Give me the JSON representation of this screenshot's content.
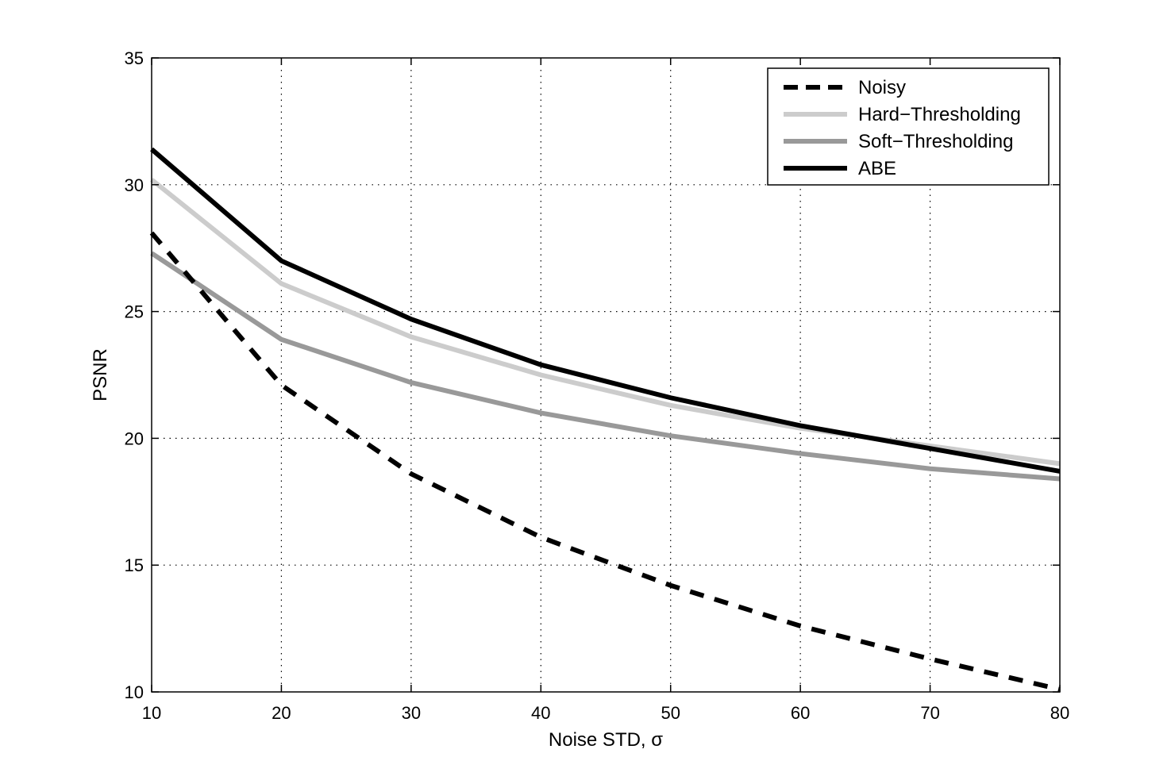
{
  "chart_data": {
    "type": "line",
    "title": "",
    "xlabel": "Noise STD, σ",
    "ylabel": "PSNR",
    "xlim": [
      10,
      80
    ],
    "ylim": [
      10,
      35
    ],
    "xticks": [
      10,
      20,
      30,
      40,
      50,
      60,
      70,
      80
    ],
    "yticks": [
      10,
      15,
      20,
      25,
      30,
      35
    ],
    "grid": true,
    "legend_position": "top-right",
    "x": [
      10,
      20,
      30,
      40,
      50,
      60,
      70,
      80
    ],
    "series": [
      {
        "name": "Noisy",
        "values": [
          28.1,
          22.1,
          18.6,
          16.1,
          14.2,
          12.6,
          11.3,
          10.1
        ],
        "color": "#000000",
        "style": "dashed"
      },
      {
        "name": "Hard−Thresholding",
        "values": [
          30.2,
          26.1,
          24.0,
          22.5,
          21.3,
          20.4,
          19.7,
          19.0
        ],
        "color": "#cccccc",
        "style": "solid"
      },
      {
        "name": "Soft−Thresholding",
        "values": [
          27.3,
          23.9,
          22.2,
          21.0,
          20.1,
          19.4,
          18.8,
          18.4
        ],
        "color": "#999999",
        "style": "solid"
      },
      {
        "name": "ABE",
        "values": [
          31.4,
          27.0,
          24.7,
          22.9,
          21.6,
          20.5,
          19.6,
          18.7
        ],
        "color": "#000000",
        "style": "solid"
      }
    ]
  }
}
